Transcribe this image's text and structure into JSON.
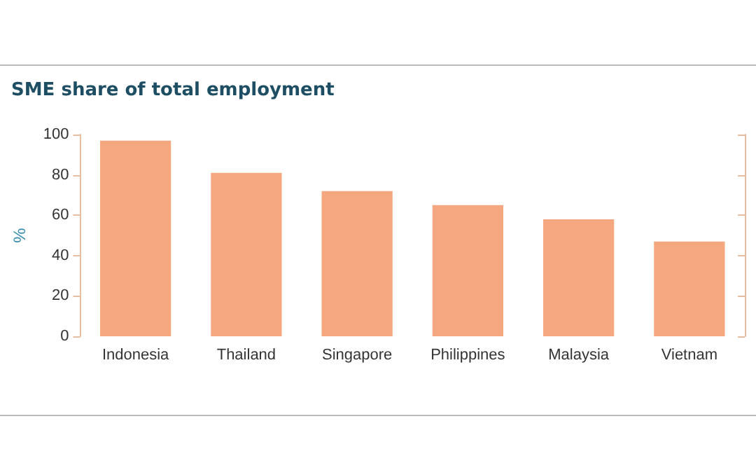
{
  "chart_data": {
    "type": "bar",
    "title": "SME share of total employment",
    "ylabel": "%",
    "categories": [
      "Indonesia",
      "Thailand",
      "Singapore",
      "Philippines",
      "Malaysia",
      "Vietnam"
    ],
    "values": [
      97,
      81,
      72,
      65,
      58,
      47
    ],
    "color": "#f5a880",
    "ylim": [
      0,
      100
    ],
    "yticks": [
      0,
      20,
      40,
      60,
      80,
      100
    ],
    "grid": false
  }
}
